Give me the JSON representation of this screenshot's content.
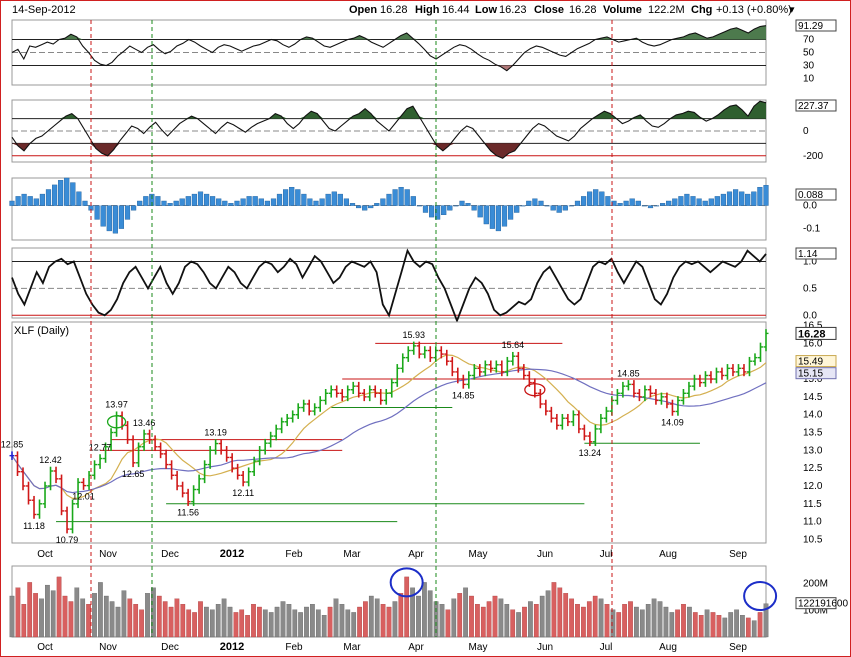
{
  "header": {
    "date": "14-Sep-2012",
    "open_label": "Open",
    "open": "16.28",
    "high_label": "High",
    "high": "16.44",
    "low_label": "Low",
    "low": "16.23",
    "close_label": "Close",
    "close": "16.28",
    "volume_label": "Volume",
    "volume": "122.2M",
    "chg_label": "Chg",
    "chg": "+0.13 (+0.80%)",
    "collapse_glyph": "▾"
  },
  "chart_data": [
    {
      "id": "rsi",
      "type": "line",
      "title": "",
      "y_ticks": [
        "70",
        "50",
        "30",
        "10"
      ],
      "ylim": [
        0,
        100
      ],
      "reference_lines": [
        70,
        50,
        30
      ],
      "last_value": "91.29",
      "last_color": "#ffffff",
      "series_points": [
        50,
        55,
        40,
        60,
        58,
        62,
        66,
        63,
        70,
        72,
        78,
        74,
        60,
        50,
        38,
        32,
        30,
        35,
        45,
        52,
        60,
        55,
        50,
        58,
        62,
        54,
        48,
        52,
        60,
        64,
        70,
        66,
        60,
        55,
        50,
        58,
        62,
        60,
        56,
        52,
        56,
        60,
        62,
        66,
        70,
        68,
        62,
        58,
        63,
        70,
        74,
        72,
        66,
        60,
        58,
        62,
        66,
        70,
        72,
        76,
        72,
        66,
        62,
        58,
        64,
        70,
        76,
        80,
        72,
        64,
        55,
        45,
        40,
        46,
        52,
        58,
        62,
        60,
        55,
        48,
        42,
        38,
        32,
        28,
        22,
        30,
        40,
        50,
        56,
        60,
        58,
        54,
        50,
        46,
        44,
        50,
        56,
        60,
        64,
        70,
        72,
        74,
        70,
        66,
        68,
        70,
        72,
        66,
        62,
        60,
        62,
        66,
        70,
        72,
        74,
        78,
        80,
        76,
        72,
        74,
        78,
        82,
        86,
        88,
        84,
        80,
        86,
        90,
        91.29
      ]
    },
    {
      "id": "cci",
      "type": "line",
      "title": "",
      "y_ticks": [
        "0",
        "-200"
      ],
      "ylim": [
        -250,
        250
      ],
      "reference_lines": [
        100,
        0,
        -100,
        -200
      ],
      "last_value": "227.37",
      "last_color": "#ffffff",
      "series_points": [
        -50,
        -120,
        -160,
        -100,
        -60,
        -40,
        0,
        40,
        80,
        120,
        140,
        100,
        20,
        -60,
        -140,
        -180,
        -200,
        -150,
        -80,
        -20,
        40,
        20,
        -20,
        30,
        70,
        10,
        -40,
        10,
        60,
        90,
        120,
        100,
        60,
        20,
        -20,
        30,
        70,
        50,
        20,
        -10,
        30,
        60,
        80,
        100,
        140,
        120,
        60,
        20,
        60,
        120,
        160,
        140,
        80,
        20,
        0,
        40,
        80,
        120,
        140,
        180,
        140,
        80,
        40,
        0,
        60,
        120,
        180,
        200,
        120,
        40,
        -40,
        -120,
        -160,
        -120,
        -60,
        0,
        40,
        20,
        -40,
        -100,
        -160,
        -200,
        -220,
        -180,
        -160,
        -100,
        -40,
        20,
        60,
        40,
        0,
        -40,
        -60,
        -80,
        -40,
        20,
        60,
        100,
        130,
        160,
        140,
        100,
        60,
        80,
        110,
        130,
        80,
        40,
        30,
        60,
        100,
        130,
        140,
        160,
        150,
        110,
        80,
        100,
        130,
        170,
        200,
        210,
        170,
        120,
        200,
        240,
        227.37
      ]
    },
    {
      "id": "macd_histogram",
      "type": "bar",
      "title": "",
      "y_ticks": [
        "0.0",
        "-0.1"
      ],
      "ylim": [
        -0.15,
        0.12
      ],
      "last_value": "0.088",
      "last_color": "#ffffff",
      "bar_color": "#3a8cd6",
      "values": [
        0.02,
        0.04,
        0.05,
        0.04,
        0.03,
        0.05,
        0.07,
        0.09,
        0.11,
        0.12,
        0.1,
        0.06,
        0.02,
        -0.02,
        -0.06,
        -0.09,
        -0.11,
        -0.12,
        -0.1,
        -0.06,
        -0.02,
        0.02,
        0.04,
        0.05,
        0.04,
        0.02,
        0.01,
        0.02,
        0.03,
        0.04,
        0.05,
        0.06,
        0.05,
        0.04,
        0.03,
        0.02,
        0.01,
        0.02,
        0.03,
        0.04,
        0.04,
        0.03,
        0.02,
        0.03,
        0.05,
        0.07,
        0.08,
        0.07,
        0.05,
        0.03,
        0.02,
        0.03,
        0.05,
        0.06,
        0.05,
        0.03,
        0.01,
        -0.01,
        -0.02,
        -0.01,
        0.01,
        0.03,
        0.05,
        0.07,
        0.08,
        0.07,
        0.04,
        0.0,
        -0.03,
        -0.05,
        -0.06,
        -0.04,
        -0.02,
        0.0,
        0.02,
        0.01,
        -0.02,
        -0.05,
        -0.08,
        -0.1,
        -0.11,
        -0.09,
        -0.06,
        -0.03,
        0.0,
        0.02,
        0.03,
        0.02,
        0.0,
        -0.02,
        -0.03,
        -0.02,
        0.0,
        0.02,
        0.04,
        0.06,
        0.07,
        0.06,
        0.04,
        0.02,
        0.01,
        0.02,
        0.03,
        0.02,
        0.0,
        -0.01,
        0.0,
        0.01,
        0.02,
        0.03,
        0.04,
        0.05,
        0.04,
        0.03,
        0.02,
        0.03,
        0.04,
        0.05,
        0.06,
        0.07,
        0.06,
        0.05,
        0.06,
        0.08,
        0.088
      ]
    },
    {
      "id": "stochrsi",
      "type": "line",
      "title": "",
      "y_ticks": [
        "1.0",
        "0.5",
        "0.0"
      ],
      "ylim": [
        -0.05,
        1.25
      ],
      "reference_lines": [
        1.0,
        0.5,
        0.0
      ],
      "last_value": "1.14",
      "last_color": "#ffffff",
      "series_points": [
        0.7,
        0.4,
        0.2,
        0.5,
        0.8,
        0.6,
        0.9,
        1.0,
        1.05,
        0.95,
        1.0,
        0.7,
        0.4,
        0.2,
        0.05,
        0.0,
        0.1,
        0.3,
        0.6,
        0.8,
        0.9,
        0.7,
        0.5,
        0.7,
        0.9,
        0.6,
        0.4,
        0.6,
        0.9,
        1.0,
        0.95,
        0.8,
        0.6,
        0.5,
        0.7,
        0.9,
        0.8,
        0.6,
        0.5,
        0.7,
        0.9,
        1.0,
        0.95,
        0.8,
        0.9,
        1.05,
        0.95,
        0.7,
        0.9,
        1.1,
        1.0,
        0.8,
        0.6,
        0.7,
        0.9,
        1.0,
        0.95,
        0.9,
        1.0,
        0.8,
        0.2,
        0.0,
        0.4,
        0.8,
        1.2,
        1.0,
        0.9,
        1.0,
        0.95,
        0.7,
        0.5,
        0.2,
        -0.1,
        0.2,
        0.5,
        0.7,
        0.6,
        0.4,
        0.1,
        0.0,
        0.05,
        0.15,
        0.25,
        0.2,
        0.3,
        0.6,
        0.8,
        0.9,
        0.7,
        0.5,
        0.3,
        0.2,
        0.3,
        0.6,
        0.9,
        1.0,
        0.95,
        1.05,
        0.8,
        0.6,
        0.8,
        1.0,
        0.9,
        0.6,
        0.3,
        0.2,
        0.4,
        0.7,
        0.9,
        1.0,
        0.95,
        1.0,
        0.9,
        0.8,
        0.9,
        1.0,
        0.95,
        0.9,
        1.0,
        1.2,
        1.1,
        1.0,
        1.14
      ]
    },
    {
      "id": "price",
      "type": "ohlc",
      "title": "XLF (Daily)",
      "y_ticks": [
        "16.0",
        "15.5",
        "15.0",
        "14.5",
        "14.0",
        "13.5",
        "13.0",
        "12.5",
        "12.0",
        "11.5",
        "11.0",
        "10.5"
      ],
      "extra_ticks": [
        "16.5"
      ],
      "ylim": [
        10.4,
        16.6
      ],
      "last_value": "16.28",
      "ma_badges": [
        {
          "value": "15.49",
          "fill": "#fff6d8",
          "stroke": "#c8a850"
        },
        {
          "value": "15.15",
          "fill": "#e6e6f5",
          "stroke": "#7070b0"
        }
      ],
      "closes": [
        12.85,
        12.4,
        12.0,
        11.6,
        11.2,
        11.5,
        12.0,
        12.42,
        12.2,
        11.3,
        10.79,
        11.5,
        12.1,
        12.01,
        12.3,
        12.6,
        12.77,
        13.1,
        13.5,
        13.97,
        13.7,
        13.3,
        12.65,
        13.1,
        13.46,
        13.3,
        13.1,
        12.9,
        12.6,
        12.3,
        12.0,
        11.8,
        11.56,
        11.9,
        12.2,
        12.6,
        13.0,
        13.19,
        13.0,
        12.8,
        12.5,
        12.3,
        12.11,
        12.4,
        12.7,
        13.0,
        13.2,
        13.4,
        13.6,
        13.8,
        13.9,
        14.0,
        14.2,
        14.3,
        14.1,
        14.2,
        14.4,
        14.6,
        14.7,
        14.6,
        14.5,
        14.7,
        14.8,
        14.6,
        14.5,
        14.7,
        14.6,
        14.4,
        14.6,
        14.9,
        15.3,
        15.6,
        15.8,
        15.93,
        15.7,
        15.8,
        15.6,
        15.8,
        15.7,
        15.5,
        15.2,
        15.0,
        14.85,
        15.1,
        15.3,
        15.2,
        15.4,
        15.3,
        15.4,
        15.2,
        15.5,
        15.64,
        15.3,
        15.1,
        14.9,
        14.6,
        14.3,
        14.1,
        13.9,
        13.7,
        13.9,
        13.8,
        14.0,
        13.6,
        13.4,
        13.24,
        13.6,
        13.9,
        14.1,
        14.4,
        14.6,
        14.8,
        14.85,
        14.6,
        14.5,
        14.7,
        14.6,
        14.4,
        14.5,
        14.3,
        14.09,
        14.4,
        14.6,
        14.8,
        15.0,
        14.9,
        15.1,
        15.0,
        15.2,
        15.1,
        15.3,
        15.2,
        15.3,
        15.2,
        15.5,
        15.6,
        15.9,
        16.28
      ],
      "annotations": [
        {
          "label": "12.85",
          "i": 0,
          "price": 12.85
        },
        {
          "label": "12.42",
          "i": 7,
          "price": 12.42
        },
        {
          "label": "11.18",
          "i": 4,
          "price": 11.18
        },
        {
          "label": "10.79",
          "i": 10,
          "price": 10.79
        },
        {
          "label": "12.01",
          "i": 13,
          "price": 12.01
        },
        {
          "label": "12.77",
          "i": 16,
          "price": 12.77
        },
        {
          "label": "13.97",
          "i": 19,
          "price": 13.97
        },
        {
          "label": "13.46",
          "i": 24,
          "price": 13.46
        },
        {
          "label": "12.65",
          "i": 22,
          "price": 12.65
        },
        {
          "label": "13.19",
          "i": 37,
          "price": 13.19
        },
        {
          "label": "11.56",
          "i": 32,
          "price": 11.56
        },
        {
          "label": "12.11",
          "i": 42,
          "price": 12.11
        },
        {
          "label": "15.93",
          "i": 73,
          "price": 15.93
        },
        {
          "label": "14.85",
          "i": 82,
          "price": 14.85
        },
        {
          "label": "15.64",
          "i": 91,
          "price": 15.64
        },
        {
          "label": "13.24",
          "i": 105,
          "price": 13.24
        },
        {
          "label": "14.85",
          "i": 112,
          "price": 14.85
        },
        {
          "label": "14.09",
          "i": 120,
          "price": 14.09
        }
      ],
      "support_resistance": [
        {
          "y": 11.0,
          "from": 8,
          "to": 70,
          "color": "#1a8a1a"
        },
        {
          "y": 11.5,
          "from": 28,
          "to": 104,
          "color": "#1a8a1a"
        },
        {
          "y": 13.0,
          "from": 16,
          "to": 60,
          "color": "#c81414"
        },
        {
          "y": 13.3,
          "from": 18,
          "to": 60,
          "color": "#c81414"
        },
        {
          "y": 14.2,
          "from": 58,
          "to": 80,
          "color": "#1a8a1a"
        },
        {
          "y": 15.0,
          "from": 60,
          "to": 112,
          "color": "#c81414"
        },
        {
          "y": 16.0,
          "from": 66,
          "to": 100,
          "color": "#c81414"
        },
        {
          "y": 13.2,
          "from": 104,
          "to": 125,
          "color": "#1a8a1a"
        },
        {
          "y": 15.0,
          "from": 112,
          "to": 128,
          "color": "#c81414"
        }
      ]
    },
    {
      "id": "volume",
      "type": "bar",
      "title": "",
      "y_ticks": [
        "200M",
        "100M"
      ],
      "ylim": [
        0,
        260
      ],
      "last_value": "122191600",
      "values": [
        150,
        180,
        120,
        200,
        160,
        140,
        190,
        170,
        220,
        150,
        130,
        180,
        140,
        120,
        160,
        200,
        150,
        130,
        110,
        170,
        140,
        120,
        100,
        160,
        180,
        150,
        130,
        110,
        140,
        120,
        100,
        90,
        130,
        110,
        100,
        120,
        140,
        110,
        90,
        100,
        80,
        120,
        110,
        100,
        90,
        110,
        130,
        120,
        100,
        90,
        110,
        120,
        100,
        80,
        110,
        140,
        120,
        100,
        90,
        110,
        130,
        150,
        140,
        120,
        110,
        130,
        160,
        220,
        180,
        150,
        200,
        170,
        130,
        120,
        100,
        140,
        160,
        180,
        150,
        120,
        110,
        130,
        150,
        140,
        120,
        100,
        90,
        110,
        130,
        120,
        150,
        170,
        200,
        180,
        160,
        140,
        120,
        110,
        130,
        150,
        140,
        120,
        100,
        90,
        120,
        130,
        110,
        100,
        120,
        140,
        130,
        110,
        90,
        100,
        120,
        110,
        90,
        80,
        100,
        90,
        80,
        70,
        90,
        100,
        80,
        70,
        60,
        90,
        122
      ]
    }
  ],
  "x_axis": {
    "labels": [
      "Oct",
      "Nov",
      "Dec",
      "2012",
      "Feb",
      "Mar",
      "Apr",
      "May",
      "Jun",
      "Jul",
      "Aug",
      "Sep"
    ],
    "bold_label": "2012"
  }
}
